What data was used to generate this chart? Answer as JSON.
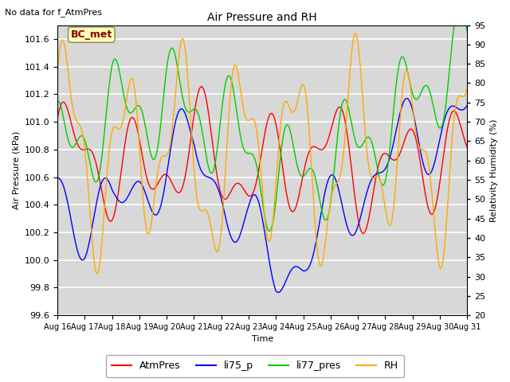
{
  "title": "Air Pressure and RH",
  "top_left_text": "No data for f_AtmPres",
  "annotation_text": "BC_met",
  "xlabel": "Time",
  "ylabel_left": "Air Pressure (kPa)",
  "ylabel_right": "Relativity Humidity (%)",
  "ylim_left": [
    99.6,
    101.7
  ],
  "ylim_right": [
    20,
    95
  ],
  "yticks_left": [
    99.6,
    99.8,
    100.0,
    100.2,
    100.4,
    100.6,
    100.8,
    101.0,
    101.2,
    101.4,
    101.6
  ],
  "yticks_right": [
    20,
    25,
    30,
    35,
    40,
    45,
    50,
    55,
    60,
    65,
    70,
    75,
    80,
    85,
    90,
    95
  ],
  "xtick_labels": [
    "Aug 16",
    "Aug 17",
    "Aug 18",
    "Aug 19",
    "Aug 20",
    "Aug 21",
    "Aug 22",
    "Aug 23",
    "Aug 24",
    "Aug 25",
    "Aug 26",
    "Aug 27",
    "Aug 28",
    "Aug 29",
    "Aug 30",
    "Aug 31"
  ],
  "colors": {
    "AtmPres": "#ff0000",
    "li75_p": "#0000ff",
    "li77_pres": "#00cc00",
    "RH": "#ffaa00"
  },
  "bg_color": "#d8d8d8",
  "grid_color": "#ffffff",
  "fig_color": "#ffffff",
  "annotation_bg": "#ffffbb",
  "annotation_fg": "#880000",
  "annotation_border": "#888844"
}
